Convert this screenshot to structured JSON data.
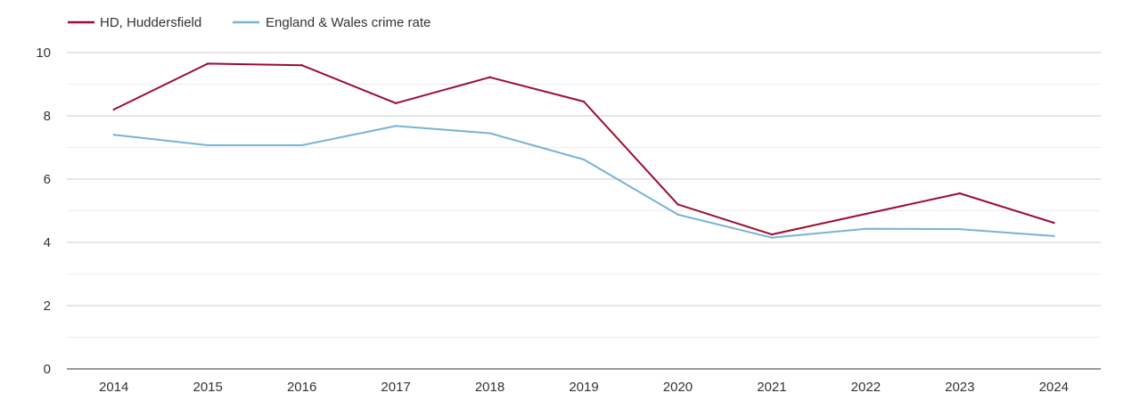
{
  "chart_data": {
    "type": "line",
    "title": "",
    "xlabel": "",
    "ylabel": "",
    "x": [
      "2014",
      "2015",
      "2016",
      "2017",
      "2018",
      "2019",
      "2020",
      "2021",
      "2022",
      "2023",
      "2024"
    ],
    "ylim": [
      0,
      10
    ],
    "y_ticks": [
      "0",
      "2",
      "4",
      "6",
      "8",
      "10"
    ],
    "grid": true,
    "legend_position": "top-left",
    "series": [
      {
        "name": "HD, Huddersfield",
        "color": "#9b0d32",
        "values": [
          8.2,
          9.65,
          9.6,
          8.4,
          9.22,
          8.45,
          5.2,
          4.25,
          4.9,
          5.55,
          4.62
        ]
      },
      {
        "name": "England & Wales crime rate",
        "color": "#7ab3d4",
        "values": [
          7.4,
          7.07,
          7.07,
          7.68,
          7.45,
          6.62,
          4.88,
          4.15,
          4.43,
          4.42,
          4.2
        ]
      }
    ]
  }
}
